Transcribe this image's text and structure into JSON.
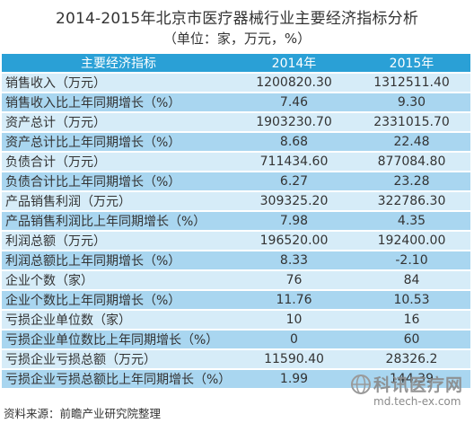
{
  "title": "2014-2015年北京市医疗器械行业主要经济指标分析",
  "subtitle": "（单位：家，万元，%）",
  "table": {
    "headers": [
      "主要经济指标",
      "2014年",
      "2015年"
    ],
    "rows": [
      {
        "indicator": "销售收入（万元）",
        "y2014": "1200820.30",
        "y2015": "1312511.40"
      },
      {
        "indicator": "销售收入比上年同期增长（%）",
        "y2014": "7.46",
        "y2015": "9.30"
      },
      {
        "indicator": "资产总计（万元）",
        "y2014": "1903230.70",
        "y2015": "2331015.70"
      },
      {
        "indicator": "资产总计比上年同期增长（%）",
        "y2014": "8.68",
        "y2015": "22.48"
      },
      {
        "indicator": "负债合计（万元）",
        "y2014": "711434.60",
        "y2015": "877084.80"
      },
      {
        "indicator": "负债合计比上年同期增长（%）",
        "y2014": "6.27",
        "y2015": "23.28"
      },
      {
        "indicator": "产品销售利润（万元）",
        "y2014": "309325.20",
        "y2015": "322786.30"
      },
      {
        "indicator": "产品销售利润比上年同期增长（%）",
        "y2014": "7.98",
        "y2015": "4.35"
      },
      {
        "indicator": "利润总额（万元）",
        "y2014": "196520.00",
        "y2015": "192400.00"
      },
      {
        "indicator": "利润总额比上年同期增长（%）",
        "y2014": "8.33",
        "y2015": "-2.10"
      },
      {
        "indicator": "企业个数（家）",
        "y2014": "76",
        "y2015": "84"
      },
      {
        "indicator": "企业个数比上年同期增长（%）",
        "y2014": "11.76",
        "y2015": "10.53"
      },
      {
        "indicator": "亏损企业单位数（家）",
        "y2014": "10",
        "y2015": "16"
      },
      {
        "indicator": "亏损企业单位数比上年同期增长（%）",
        "y2014": "0",
        "y2015": "60"
      },
      {
        "indicator": "亏损企业亏损总额（万元）",
        "y2014": "11590.40",
        "y2015": "28326.2"
      },
      {
        "indicator": "亏损企业亏损总额比上年同期增长（%）",
        "y2014": "1.99",
        "y2015": "144.39"
      }
    ]
  },
  "source": "资料来源：前瞻产业研究院整理",
  "watermark": {
    "text": "科讯医疗网",
    "url": "md.tech-ex.com"
  },
  "colors": {
    "header": "#2aa0d6",
    "row_light": "#d6ecf8",
    "row_dark": "#a9d6f0"
  }
}
